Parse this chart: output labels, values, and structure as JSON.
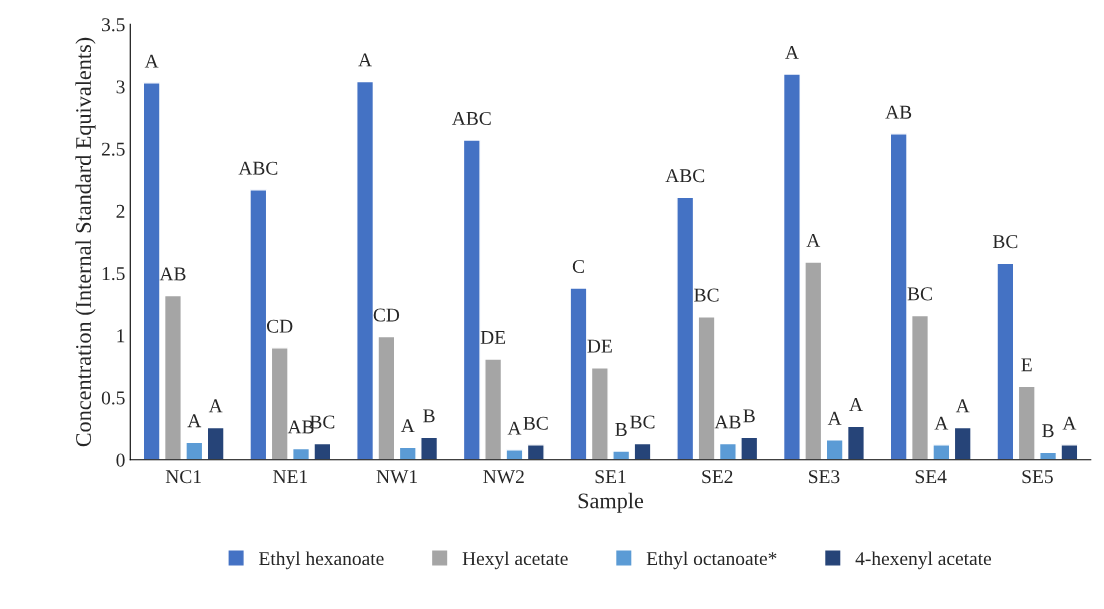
{
  "chart_data": {
    "type": "bar",
    "xlabel": "Sample",
    "ylabel": "Concentration (Internal Standard Equivalents)",
    "categories": [
      "NC1",
      "NE1",
      "NW1",
      "NW2",
      "SE1",
      "SE2",
      "SE3",
      "SE4",
      "SE5"
    ],
    "series": [
      {
        "name": "Ethyl hexanoate",
        "color": "#4472c4",
        "values": [
          3.03,
          2.17,
          3.04,
          2.57,
          1.38,
          2.11,
          3.1,
          2.62,
          1.58
        ],
        "value_labels": [
          "A",
          "ABC",
          "A",
          "ABC",
          "C",
          "ABC",
          "A",
          "AB",
          "BC"
        ]
      },
      {
        "name": "Hexyl acetate",
        "color": "#a5a5a5",
        "values": [
          1.32,
          0.9,
          0.99,
          0.81,
          0.74,
          1.15,
          1.59,
          1.16,
          0.59
        ],
        "value_labels": [
          "AB",
          "CD",
          "CD",
          "DE",
          "DE",
          "BC",
          "A",
          "BC",
          "E"
        ]
      },
      {
        "name": "Ethyl octanoate*",
        "color": "#5b9bd5",
        "values": [
          0.14,
          0.09,
          0.1,
          0.08,
          0.07,
          0.13,
          0.16,
          0.12,
          0.06
        ],
        "value_labels": [
          "A",
          "AB",
          "A",
          "A",
          "B",
          "AB",
          "A",
          "A",
          "B"
        ]
      },
      {
        "name": "4-hexenyl acetate",
        "color": "#264478",
        "values": [
          0.26,
          0.13,
          0.18,
          0.12,
          0.13,
          0.18,
          0.27,
          0.26,
          0.12
        ],
        "value_labels": [
          "A",
          "BC",
          "B",
          "BC",
          "BC",
          "B",
          "A",
          "A",
          "A"
        ]
      }
    ],
    "ylim": [
      0,
      3.5
    ],
    "yticks": [
      0,
      0.5,
      1,
      1.5,
      2,
      2.5,
      3,
      3.5
    ],
    "grid": false,
    "legend": "bottom"
  }
}
